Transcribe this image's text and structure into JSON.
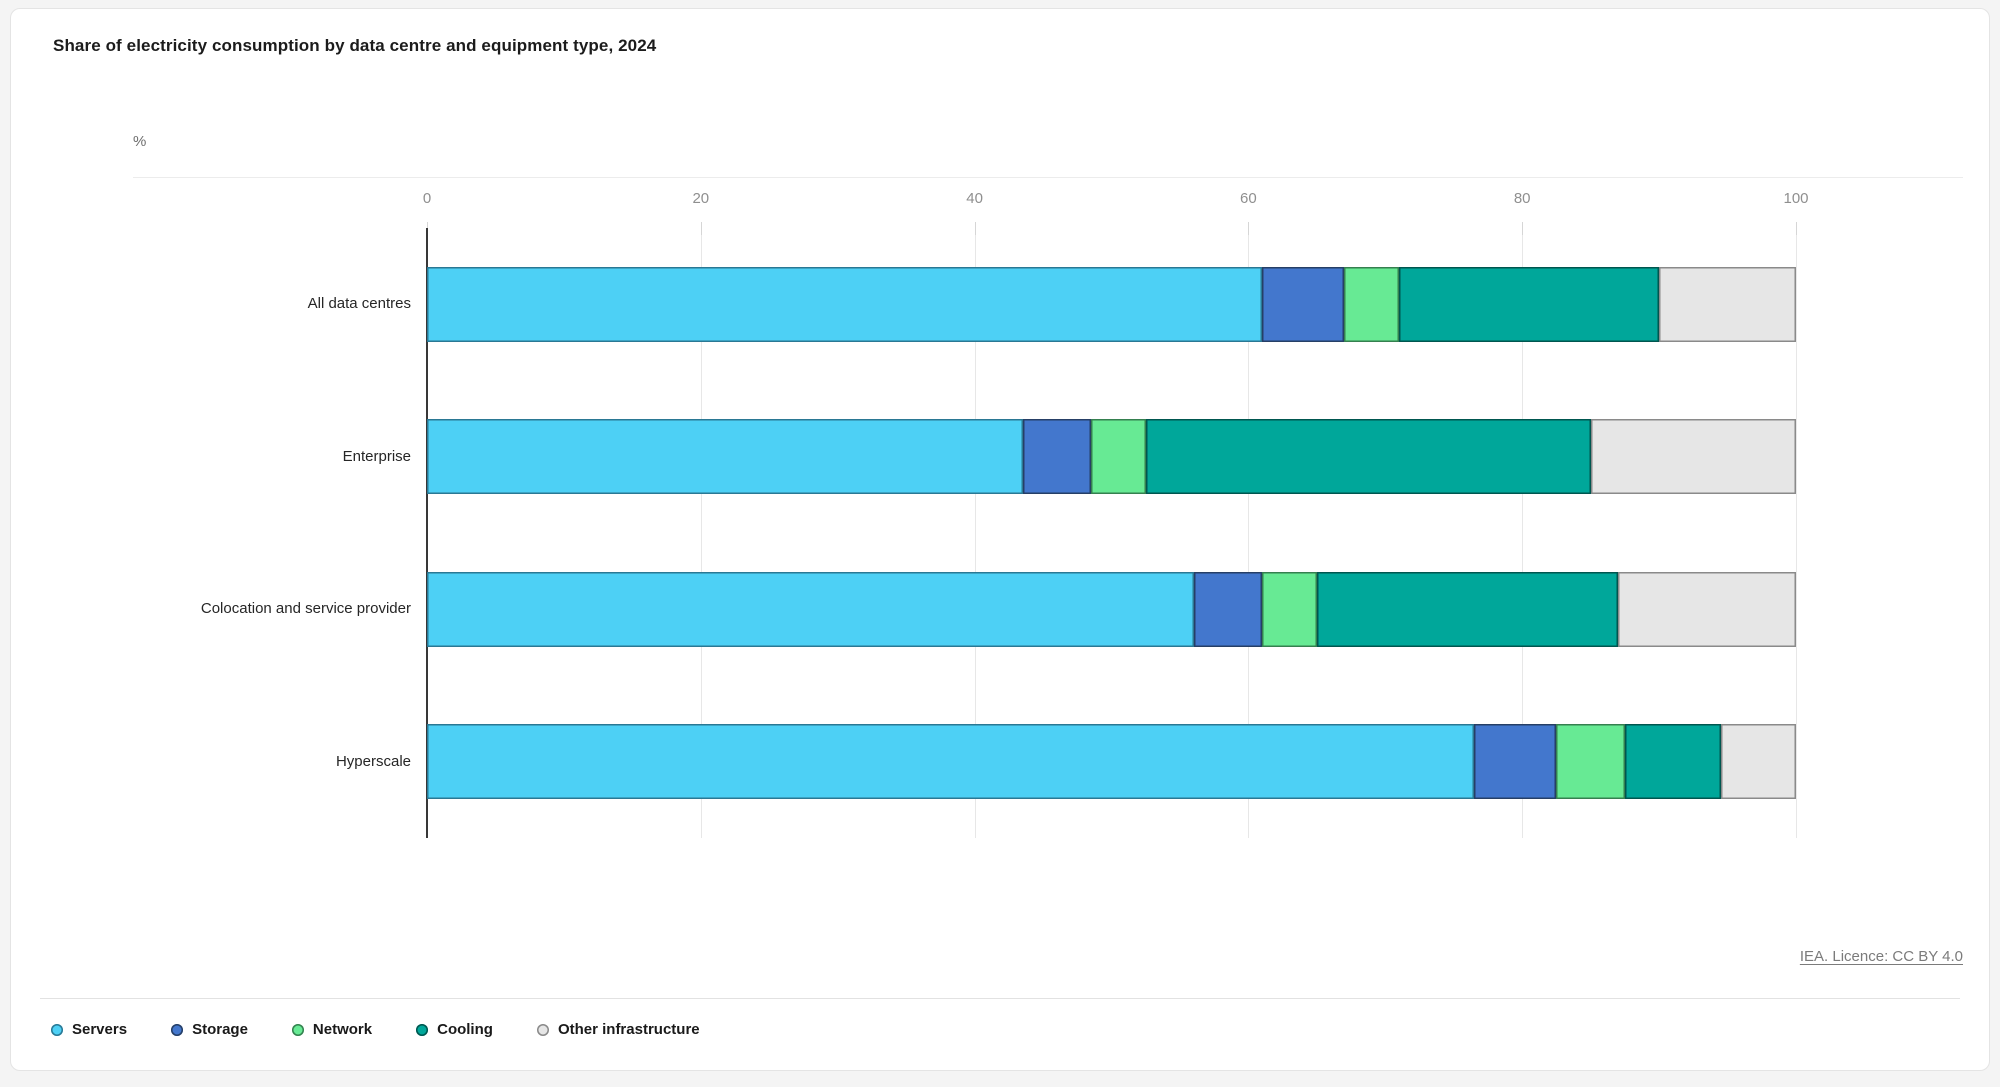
{
  "page": {
    "title": "Share of electricity consumption by data centre and equipment type, 2024",
    "axis_unit": "%",
    "source_link": "IEA. Licence: CC BY 4.0"
  },
  "chart_data": {
    "type": "bar",
    "orientation": "horizontal",
    "stacked": true,
    "unit": "%",
    "title": "Share of electricity consumption by data centre and equipment type, 2024",
    "categories": [
      "All data centres",
      "Enterprise",
      "Colocation and service provider",
      "Hyperscale"
    ],
    "series": [
      {
        "name": "Servers",
        "color": "#4DD0F5",
        "border_color": "#2A7894",
        "values": [
          61,
          43.5,
          56,
          76.5
        ]
      },
      {
        "name": "Storage",
        "color": "#4377CD",
        "border_color": "#263F66",
        "values": [
          6,
          5,
          5,
          6
        ]
      },
      {
        "name": "Network",
        "color": "#67EA94",
        "border_color": "#35804F",
        "values": [
          4,
          4,
          4,
          5
        ]
      },
      {
        "name": "Cooling",
        "color": "#00A79A",
        "border_color": "#00564F",
        "values": [
          19,
          32.5,
          22,
          7
        ]
      },
      {
        "name": "Other infrastructure",
        "color": "#E6E6E6",
        "border_color": "#8A8A8A",
        "values": [
          10,
          15,
          13,
          5.5
        ]
      }
    ],
    "xlim": [
      0,
      100
    ],
    "xticks": [
      0,
      20,
      40,
      60,
      80,
      100
    ],
    "grid": true,
    "legend_position": "bottom"
  }
}
